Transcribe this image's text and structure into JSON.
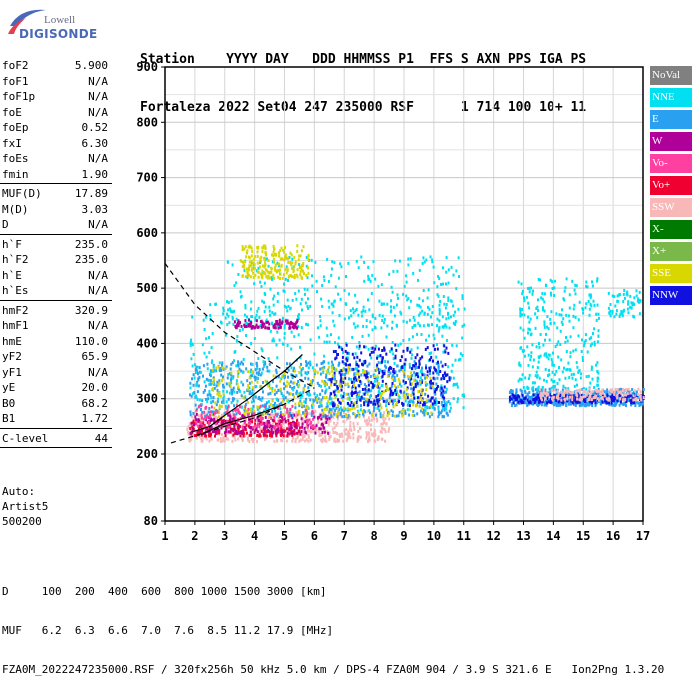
{
  "logo": {
    "line1": "Lowell",
    "line2": "DIGISONDE"
  },
  "header": {
    "line1": "Station    YYYY DAY   DDD HHMMSS P1  FFS S AXN PPS IGA PS",
    "line2": "Fortaleza 2022 Set04 247 235000 RSF      1 714 100 10+ 11"
  },
  "params": [
    [
      {
        "k": "foF2",
        "v": "5.900"
      },
      {
        "k": "foF1",
        "v": "N/A"
      },
      {
        "k": "foF1p",
        "v": "N/A"
      },
      {
        "k": "foE",
        "v": "N/A"
      },
      {
        "k": "foEp",
        "v": "0.52"
      },
      {
        "k": "fxI",
        "v": "6.30"
      },
      {
        "k": "foEs",
        "v": "N/A"
      },
      {
        "k": "fmin",
        "v": "1.90"
      }
    ],
    [
      {
        "k": "MUF(D)",
        "v": "17.89"
      },
      {
        "k": "M(D)",
        "v": "3.03"
      },
      {
        "k": "D",
        "v": "N/A"
      }
    ],
    [
      {
        "k": "h`F",
        "v": "235.0"
      },
      {
        "k": "h`F2",
        "v": "235.0"
      },
      {
        "k": "h`E",
        "v": "N/A"
      },
      {
        "k": "h`Es",
        "v": "N/A"
      }
    ],
    [
      {
        "k": "hmF2",
        "v": "320.9"
      },
      {
        "k": "hmF1",
        "v": "N/A"
      },
      {
        "k": "hmE",
        "v": "110.0"
      },
      {
        "k": "yF2",
        "v": "65.9"
      },
      {
        "k": "yF1",
        "v": "N/A"
      },
      {
        "k": "yE",
        "v": "20.0"
      },
      {
        "k": "B0",
        "v": "68.2"
      },
      {
        "k": "B1",
        "v": "1.72"
      }
    ],
    [
      {
        "k": "C-level",
        "v": "44"
      }
    ]
  ],
  "auto": {
    "line1": "Auto:",
    "line2": "Artist5",
    "line3": "500200"
  },
  "legend": [
    {
      "label": "NoVal",
      "color": "#808080"
    },
    {
      "label": "NNE",
      "color": "#00e0f0"
    },
    {
      "label": "E",
      "color": "#2aa0f0"
    },
    {
      "label": "W",
      "color": "#b0009a"
    },
    {
      "label": "Vo-",
      "color": "#ff40a0"
    },
    {
      "label": "Vo+",
      "color": "#f00030"
    },
    {
      "label": "SSW",
      "color": "#f8b8b8"
    },
    {
      "label": "X-",
      "color": "#007a00"
    },
    {
      "label": "X+",
      "color": "#7ab84a"
    },
    {
      "label": "SSE",
      "color": "#d8d800"
    },
    {
      "label": "NNW",
      "color": "#1010e0"
    }
  ],
  "footer": {
    "row1": "D     100  200  400  600  800 1000 1500 3000 [km]",
    "row2": "MUF   6.2  6.3  6.6  7.0  7.6  8.5 11.2 17.9 [MHz]",
    "row3": "FZA0M_2022247235000.RSF / 320fx256h 50 kHz 5.0 km / DPS-4 FZA0M 904 / 3.9 S 321.6 E   Ion2Png 1.3.20"
  },
  "chart_data": {
    "type": "scatter",
    "xlim": [
      1,
      17
    ],
    "ylim": [
      80,
      900
    ],
    "xticks": [
      "1",
      "2",
      "3",
      "4",
      "5",
      "6",
      "7",
      "8",
      "9",
      "10",
      "11",
      "12",
      "13",
      "14",
      "15",
      "16",
      "17"
    ],
    "yticks": [
      "80",
      "200",
      "300",
      "400",
      "500",
      "600",
      "700",
      "800",
      "900"
    ],
    "grid": true,
    "legend_position": "right",
    "clusters": [
      {
        "color": "#f8b8b8",
        "x": [
          1.7,
          8.5
        ],
        "y": [
          225,
          280
        ],
        "n": 500
      },
      {
        "color": "#f00030",
        "x": [
          1.8,
          5.5
        ],
        "y": [
          235,
          265
        ],
        "n": 220
      },
      {
        "color": "#b0009a",
        "x": [
          1.8,
          6.5
        ],
        "y": [
          240,
          275
        ],
        "n": 200
      },
      {
        "color": "#2aa0f0",
        "x": [
          1.8,
          10.5
        ],
        "y": [
          270,
          370
        ],
        "n": 700
      },
      {
        "color": "#00e0f0",
        "x": [
          1.8,
          11
        ],
        "y": [
          280,
          480
        ],
        "n": 500
      },
      {
        "color": "#1010e0",
        "x": [
          6.5,
          10.5
        ],
        "y": [
          290,
          400
        ],
        "n": 300
      },
      {
        "color": "#d8d800",
        "x": [
          2.5,
          10
        ],
        "y": [
          270,
          360
        ],
        "n": 250
      },
      {
        "color": "#ff40a0",
        "x": [
          2,
          6
        ],
        "y": [
          250,
          290
        ],
        "n": 120
      },
      {
        "color": "#00e0f0",
        "x": [
          3,
          11
        ],
        "y": [
          430,
          560
        ],
        "n": 300
      },
      {
        "color": "#d8d800",
        "x": [
          3.5,
          5.8
        ],
        "y": [
          520,
          580
        ],
        "n": 200
      },
      {
        "color": "#b0009a",
        "x": [
          3.3,
          5.5
        ],
        "y": [
          430,
          445
        ],
        "n": 100
      },
      {
        "color": "#2aa0f0",
        "x": [
          12.5,
          17
        ],
        "y": [
          290,
          320
        ],
        "n": 450
      },
      {
        "color": "#1010e0",
        "x": [
          12.5,
          17
        ],
        "y": [
          295,
          310
        ],
        "n": 200
      },
      {
        "color": "#00e0f0",
        "x": [
          12.8,
          15.5
        ],
        "y": [
          320,
          520
        ],
        "n": 300
      },
      {
        "color": "#f8b8b8",
        "x": [
          13.5,
          17
        ],
        "y": [
          300,
          320
        ],
        "n": 150
      },
      {
        "color": "#00e0f0",
        "x": [
          15.8,
          16.9
        ],
        "y": [
          450,
          500
        ],
        "n": 60
      }
    ],
    "curves": [
      {
        "style": "dashed",
        "x": [
          1,
          2,
          3,
          4,
          5,
          6
        ],
        "y": [
          545,
          470,
          420,
          385,
          350,
          320
        ]
      },
      {
        "style": "dashed",
        "x": [
          1.2,
          2,
          3,
          4,
          5,
          6
        ],
        "y": [
          220,
          233,
          250,
          265,
          290,
          320
        ]
      },
      {
        "style": "solid",
        "x": [
          1.9,
          2.5,
          3,
          3.8,
          4.5,
          5,
          5.6
        ],
        "y": [
          240,
          250,
          270,
          300,
          330,
          350,
          380
        ]
      },
      {
        "style": "solid",
        "x": [
          2.2,
          3,
          4,
          5
        ],
        "y": [
          235,
          255,
          270,
          290
        ]
      }
    ]
  }
}
